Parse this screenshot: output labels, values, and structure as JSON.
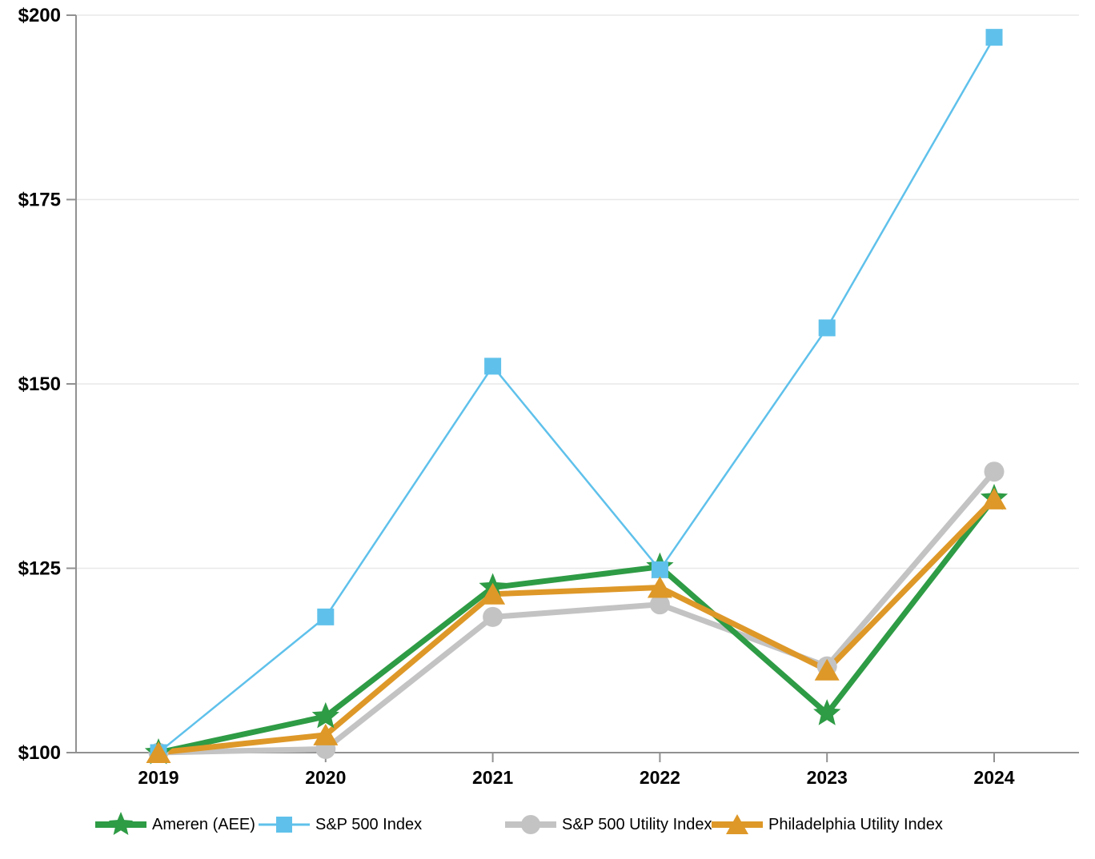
{
  "chart_data": {
    "type": "line",
    "title": "",
    "xlabel": "",
    "ylabel": "",
    "categories": [
      "2019",
      "2020",
      "2021",
      "2022",
      "2023",
      "2024"
    ],
    "ylim": [
      100,
      200
    ],
    "grid": true,
    "legend_position": "bottom",
    "y_ticks": [
      {
        "value": 100,
        "label": "$100"
      },
      {
        "value": 125,
        "label": "$125"
      },
      {
        "value": 150,
        "label": "$150"
      },
      {
        "value": 175,
        "label": "$175"
      },
      {
        "value": 200,
        "label": "$200"
      }
    ],
    "series": [
      {
        "name": "Ameren (AEE)",
        "color": "#2E9B45",
        "marker": "star",
        "line_width": 7,
        "values": [
          100,
          104.9,
          122.4,
          125.2,
          105.3,
          134.5
        ]
      },
      {
        "name": "S&P 500 Index",
        "color": "#5FC1EB",
        "marker": "square",
        "line_width": 2.5,
        "values": [
          100,
          118.4,
          152.4,
          124.8,
          157.6,
          197.0
        ]
      },
      {
        "name": "S&P 500 Utility Index",
        "color": "#C3C3C3",
        "marker": "circle",
        "line_width": 7,
        "values": [
          100,
          100.5,
          118.4,
          120.1,
          111.7,
          138.1
        ]
      },
      {
        "name": "Philadelphia Utility Index",
        "color": "#DE9828",
        "marker": "triangle",
        "line_width": 7,
        "values": [
          100,
          102.4,
          121.5,
          122.4,
          111.2,
          134.4
        ]
      }
    ]
  },
  "axes_style": {
    "axis_color": "#919191",
    "grid_color": "#E8E8E8",
    "tick_label_color": "#000000"
  },
  "legend": {
    "items": [
      "Ameren (AEE)",
      "S&P 500 Index",
      "S&P 500 Utility Index",
      "Philadelphia Utility Index"
    ]
  }
}
